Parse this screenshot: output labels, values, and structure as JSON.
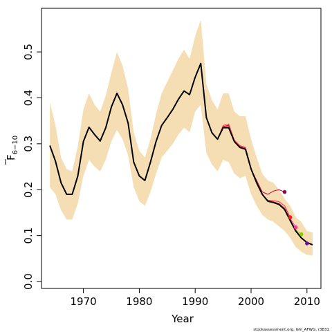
{
  "chart_data": {
    "type": "line",
    "title": "",
    "xlabel": "Year",
    "ylabel_main": "F",
    "ylabel_sub": "6−10",
    "xlim": [
      1962.5,
      2012.5
    ],
    "ylim": [
      -0.015,
      0.595
    ],
    "x_ticks": [
      1970,
      1980,
      1990,
      2000,
      2010
    ],
    "x_tick_labels": [
      "1970",
      "1980",
      "1990",
      "2000",
      "2010"
    ],
    "y_ticks": [
      0.0,
      0.1,
      0.2,
      0.3,
      0.4,
      0.5
    ],
    "y_tick_labels": [
      "0.0",
      "0.1",
      "0.2",
      "0.3",
      "0.4",
      "0.5"
    ],
    "grid": false,
    "legend": "none",
    "credit": "stockassessment.org, Ghl_AFWG, r3831",
    "band": {
      "color": "#f5deb3",
      "x": [
        1964,
        1965,
        1966,
        1967,
        1968,
        1969,
        1970,
        1971,
        1972,
        1973,
        1974,
        1975,
        1976,
        1977,
        1978,
        1979,
        1980,
        1981,
        1982,
        1983,
        1984,
        1985,
        1986,
        1987,
        1988,
        1989,
        1990,
        1991,
        1992,
        1993,
        1994,
        1995,
        1996,
        1997,
        1998,
        1999,
        2000,
        2001,
        2002,
        2003,
        2004,
        2005,
        2006,
        2007,
        2008,
        2009,
        2010,
        2011
      ],
      "upper": [
        0.39,
        0.34,
        0.27,
        0.245,
        0.24,
        0.295,
        0.375,
        0.41,
        0.385,
        0.37,
        0.405,
        0.455,
        0.5,
        0.47,
        0.42,
        0.325,
        0.285,
        0.27,
        0.31,
        0.365,
        0.41,
        0.435,
        0.46,
        0.485,
        0.505,
        0.485,
        0.535,
        0.57,
        0.43,
        0.395,
        0.375,
        0.41,
        0.41,
        0.37,
        0.36,
        0.36,
        0.31,
        0.27,
        0.235,
        0.22,
        0.215,
        0.2,
        0.18,
        0.165,
        0.14,
        0.13,
        0.11,
        0.107
      ],
      "lower": [
        0.205,
        0.19,
        0.155,
        0.135,
        0.135,
        0.17,
        0.23,
        0.265,
        0.25,
        0.24,
        0.265,
        0.305,
        0.33,
        0.31,
        0.275,
        0.205,
        0.175,
        0.165,
        0.195,
        0.235,
        0.27,
        0.285,
        0.3,
        0.32,
        0.335,
        0.325,
        0.37,
        0.385,
        0.28,
        0.255,
        0.24,
        0.265,
        0.26,
        0.235,
        0.225,
        0.23,
        0.19,
        0.165,
        0.145,
        0.135,
        0.13,
        0.12,
        0.11,
        0.095,
        0.075,
        0.065,
        0.058,
        0.057
      ]
    },
    "series": [
      {
        "color": "#000000",
        "width": 2,
        "x": [
          1964,
          1965,
          1966,
          1967,
          1968,
          1969,
          1970,
          1971,
          1972,
          1973,
          1974,
          1975,
          1976,
          1977,
          1978,
          1979,
          1980,
          1981,
          1982,
          1983,
          1984,
          1985,
          1986,
          1987,
          1988,
          1989,
          1990,
          1991,
          1992,
          1993,
          1994,
          1995,
          1996,
          1997,
          1998,
          1999,
          2000,
          2001,
          2002,
          2003,
          2004,
          2005,
          2006,
          2007,
          2008,
          2009,
          2010,
          2011
        ],
        "values": [
          0.296,
          0.262,
          0.215,
          0.19,
          0.19,
          0.23,
          0.305,
          0.336,
          0.32,
          0.306,
          0.335,
          0.38,
          0.41,
          0.385,
          0.345,
          0.26,
          0.23,
          0.22,
          0.26,
          0.305,
          0.34,
          0.357,
          0.375,
          0.397,
          0.415,
          0.407,
          0.445,
          0.475,
          0.357,
          0.324,
          0.31,
          0.335,
          0.335,
          0.305,
          0.292,
          0.288,
          0.245,
          0.215,
          0.19,
          0.175,
          0.172,
          0.168,
          0.157,
          0.133,
          0.11,
          0.095,
          0.085,
          0.08
        ],
        "end_point_color": null
      },
      {
        "color": "#d6003f",
        "width": 1,
        "x": [
          1964,
          1965,
          1966,
          1967,
          1968,
          1969,
          1970,
          1971,
          1972,
          1973,
          1974,
          1975,
          1976,
          1977,
          1978,
          1979,
          1980,
          1981,
          1982,
          1983,
          1984,
          1985,
          1986,
          1987,
          1988,
          1989,
          1990,
          1991,
          1992,
          1993,
          1994,
          1995,
          1996,
          1997,
          1998,
          1999,
          2000,
          2001,
          2002,
          2003,
          2004,
          2005,
          2006
        ],
        "values": [
          0.296,
          0.262,
          0.215,
          0.19,
          0.19,
          0.23,
          0.305,
          0.336,
          0.32,
          0.306,
          0.335,
          0.38,
          0.41,
          0.385,
          0.345,
          0.26,
          0.23,
          0.22,
          0.26,
          0.305,
          0.34,
          0.357,
          0.375,
          0.397,
          0.415,
          0.407,
          0.445,
          0.475,
          0.357,
          0.324,
          0.31,
          0.338,
          0.34,
          0.305,
          0.294,
          0.291,
          0.245,
          0.22,
          0.195,
          0.19,
          0.197,
          0.2,
          0.195
        ],
        "end_point_color": "#8b0a50"
      },
      {
        "color": "#ff2a2a",
        "width": 1,
        "x": [
          1964,
          1965,
          1966,
          1967,
          1968,
          1969,
          1970,
          1971,
          1972,
          1973,
          1974,
          1975,
          1976,
          1977,
          1978,
          1979,
          1980,
          1981,
          1982,
          1983,
          1984,
          1985,
          1986,
          1987,
          1988,
          1989,
          1990,
          1991,
          1992,
          1993,
          1994,
          1995,
          1996,
          1997,
          1998,
          1999,
          2000,
          2001,
          2002,
          2003,
          2004,
          2005,
          2006,
          2007
        ],
        "values": [
          0.296,
          0.262,
          0.215,
          0.19,
          0.19,
          0.23,
          0.305,
          0.336,
          0.32,
          0.306,
          0.335,
          0.38,
          0.41,
          0.385,
          0.345,
          0.26,
          0.23,
          0.22,
          0.26,
          0.305,
          0.34,
          0.357,
          0.375,
          0.397,
          0.415,
          0.407,
          0.445,
          0.475,
          0.357,
          0.324,
          0.31,
          0.34,
          0.343,
          0.308,
          0.296,
          0.292,
          0.247,
          0.215,
          0.19,
          0.177,
          0.176,
          0.174,
          0.165,
          0.14
        ],
        "end_point_color": "#ff1a1a"
      },
      {
        "color": "#ff3399",
        "width": 1,
        "x": [
          1964,
          1965,
          1966,
          1967,
          1968,
          1969,
          1970,
          1971,
          1972,
          1973,
          1974,
          1975,
          1976,
          1977,
          1978,
          1979,
          1980,
          1981,
          1982,
          1983,
          1984,
          1985,
          1986,
          1987,
          1988,
          1989,
          1990,
          1991,
          1992,
          1993,
          1994,
          1995,
          1996,
          1997,
          1998,
          1999,
          2000,
          2001,
          2002,
          2003,
          2004,
          2005,
          2006,
          2007,
          2008
        ],
        "values": [
          0.296,
          0.262,
          0.215,
          0.19,
          0.19,
          0.23,
          0.305,
          0.336,
          0.32,
          0.306,
          0.335,
          0.38,
          0.41,
          0.385,
          0.345,
          0.26,
          0.23,
          0.22,
          0.26,
          0.305,
          0.34,
          0.357,
          0.375,
          0.397,
          0.415,
          0.407,
          0.445,
          0.475,
          0.357,
          0.324,
          0.31,
          0.336,
          0.338,
          0.306,
          0.293,
          0.29,
          0.246,
          0.216,
          0.19,
          0.176,
          0.174,
          0.17,
          0.16,
          0.137,
          0.118
        ],
        "end_point_color": "#ff3399"
      },
      {
        "color": "#99cc00",
        "width": 1,
        "x": [
          2005,
          2006,
          2007,
          2008,
          2009
        ],
        "values": [
          0.168,
          0.157,
          0.134,
          0.112,
          0.103
        ],
        "end_point_color": "#88cc00"
      },
      {
        "color": "#7a1fa2",
        "width": 1,
        "x": [
          2005,
          2006,
          2007,
          2008,
          2009,
          2010
        ],
        "values": [
          0.168,
          0.157,
          0.133,
          0.11,
          0.096,
          0.083
        ],
        "end_point_color": "#6a0dad"
      }
    ]
  }
}
